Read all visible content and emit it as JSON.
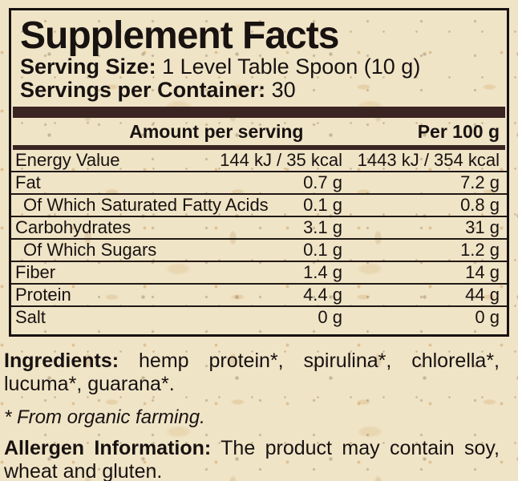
{
  "panel": {
    "title": "Supplement Facts",
    "serving_size_label": "Serving Size:",
    "serving_size_value": "1 Level Table Spoon (10 g)",
    "servings_label": "Servings per Container:",
    "servings_value": "30"
  },
  "table": {
    "columns": {
      "amount": "Amount per serving",
      "per100": "Per 100 g"
    },
    "rows": [
      {
        "name": "Energy Value",
        "amount": "144 kJ / 35 kcal",
        "per100": "1443 kJ / 354 kcal"
      },
      {
        "name": "Fat",
        "amount": "0.7 g",
        "per100": "7.2 g"
      },
      {
        "name": "Of Which Saturated Fatty Acids",
        "amount": "0.1 g",
        "per100": "0.8 g"
      },
      {
        "name": "Carbohydrates",
        "amount": "3.1 g",
        "per100": "31 g"
      },
      {
        "name": "Of Which Sugars",
        "amount": "0.1 g",
        "per100": "1.2 g"
      },
      {
        "name": "Fiber",
        "amount": "1.4 g",
        "per100": "14 g"
      },
      {
        "name": "Protein",
        "amount": "4.4 g",
        "per100": "44 g"
      },
      {
        "name": "Salt",
        "amount": "0 g",
        "per100": "0 g"
      }
    ]
  },
  "footer": {
    "ingredients_label": "Ingredients:",
    "ingredients_line1": "hemp protein*, spirulina*, chlorella*,",
    "ingredients_line2": "lucuma*, guarana*.",
    "organic_note": "* From organic farming.",
    "allergen_label": "Allergen Information:",
    "allergen_line1": "The product may contain soy,",
    "allergen_line2": "wheat and gluten."
  },
  "colors": {
    "paper": "#f0e4c7",
    "bar": "#3a2522",
    "ink": "#181210"
  }
}
